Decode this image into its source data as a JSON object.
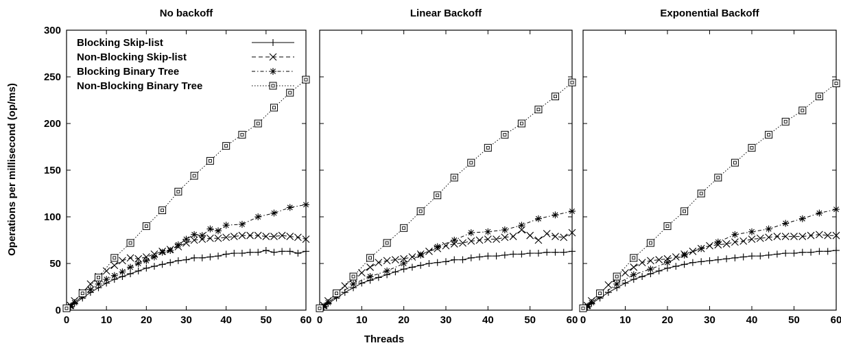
{
  "figure": {
    "ylabel": "Operations per millisecond (op/ms)",
    "xlabel": "Threads"
  },
  "chart_data": [
    {
      "type": "line",
      "title": "No backoff",
      "xlim": [
        0,
        60
      ],
      "ylim": [
        0,
        300
      ],
      "xticks": [
        0,
        10,
        20,
        30,
        40,
        50,
        60
      ],
      "yticks": [
        0,
        50,
        100,
        150,
        200,
        250,
        300
      ],
      "legend": "top-left",
      "series": [
        {
          "name": "Blocking Skip-list",
          "marker": "plus",
          "dash": "solid",
          "x": [
            1,
            2,
            4,
            6,
            8,
            10,
            12,
            14,
            16,
            18,
            20,
            22,
            24,
            26,
            28,
            30,
            32,
            34,
            36,
            38,
            40,
            42,
            44,
            46,
            48,
            50,
            52,
            54,
            56,
            58,
            60
          ],
          "y": [
            3,
            7,
            13,
            19,
            24,
            29,
            33,
            36,
            39,
            42,
            45,
            47,
            49,
            51,
            53,
            54,
            56,
            56,
            57,
            58,
            60,
            61,
            61,
            62,
            62,
            64,
            62,
            63,
            63,
            61,
            63
          ]
        },
        {
          "name": "Non-Blocking Skip-list",
          "marker": "cross",
          "dash": "dashed",
          "x": [
            1,
            2,
            4,
            6,
            8,
            10,
            12,
            14,
            16,
            18,
            20,
            22,
            24,
            26,
            28,
            30,
            32,
            34,
            36,
            38,
            40,
            42,
            44,
            46,
            48,
            50,
            52,
            54,
            56,
            58,
            60
          ],
          "y": [
            5,
            10,
            19,
            28,
            36,
            42,
            48,
            53,
            56,
            55,
            57,
            60,
            63,
            65,
            68,
            72,
            75,
            76,
            77,
            77,
            78,
            79,
            80,
            80,
            80,
            79,
            79,
            80,
            79,
            78,
            76
          ]
        },
        {
          "name": "Blocking Binary Tree",
          "marker": "star",
          "dash": "dashdot",
          "x": [
            1,
            2,
            4,
            6,
            8,
            10,
            12,
            14,
            16,
            18,
            20,
            22,
            24,
            26,
            28,
            30,
            32,
            34,
            36,
            38,
            40,
            44,
            48,
            52,
            56,
            60
          ],
          "y": [
            4,
            8,
            15,
            22,
            28,
            33,
            37,
            41,
            46,
            50,
            53,
            57,
            62,
            64,
            70,
            76,
            81,
            80,
            87,
            85,
            91,
            92,
            100,
            104,
            110,
            113
          ]
        },
        {
          "name": "Non-Blocking Binary Tree",
          "marker": "square",
          "dash": "dotted",
          "x": [
            0,
            4,
            8,
            12,
            16,
            20,
            24,
            28,
            32,
            36,
            40,
            44,
            48,
            52,
            56,
            60
          ],
          "y": [
            2,
            18,
            35,
            56,
            72,
            90,
            107,
            127,
            144,
            160,
            176,
            188,
            200,
            217,
            233,
            247
          ]
        }
      ]
    },
    {
      "type": "line",
      "title": "Linear Backoff",
      "xlim": [
        0,
        60
      ],
      "ylim": [
        0,
        300
      ],
      "xticks": [
        0,
        10,
        20,
        30,
        40,
        50,
        60
      ],
      "yticks": [
        0,
        50,
        100,
        150,
        200,
        250,
        300
      ],
      "series": [
        {
          "name": "Blocking Skip-list",
          "marker": "plus",
          "dash": "solid",
          "x": [
            1,
            2,
            4,
            6,
            8,
            10,
            12,
            14,
            16,
            18,
            20,
            22,
            24,
            26,
            28,
            30,
            32,
            34,
            36,
            38,
            40,
            42,
            44,
            46,
            48,
            50,
            52,
            54,
            56,
            58,
            60
          ],
          "y": [
            3,
            7,
            13,
            19,
            24,
            29,
            32,
            35,
            38,
            41,
            44,
            46,
            48,
            50,
            51,
            52,
            54,
            54,
            56,
            57,
            58,
            58,
            59,
            60,
            60,
            61,
            61,
            62,
            62,
            62,
            63
          ]
        },
        {
          "name": "Non-Blocking Skip-list",
          "marker": "cross",
          "dash": "dashed",
          "x": [
            1,
            2,
            4,
            6,
            8,
            10,
            12,
            14,
            16,
            18,
            20,
            22,
            24,
            26,
            28,
            30,
            32,
            34,
            36,
            38,
            40,
            42,
            44,
            46,
            48,
            50,
            52,
            54,
            56,
            58,
            60
          ],
          "y": [
            5,
            10,
            18,
            26,
            34,
            40,
            46,
            51,
            53,
            54,
            55,
            57,
            60,
            63,
            66,
            69,
            71,
            72,
            74,
            75,
            76,
            76,
            78,
            79,
            86,
            80,
            75,
            82,
            79,
            78,
            83
          ]
        },
        {
          "name": "Blocking Binary Tree",
          "marker": "star",
          "dash": "dashdot",
          "x": [
            1,
            2,
            4,
            8,
            12,
            16,
            20,
            24,
            28,
            32,
            36,
            40,
            44,
            48,
            52,
            56,
            60
          ],
          "y": [
            4,
            8,
            15,
            28,
            36,
            42,
            50,
            59,
            68,
            75,
            83,
            84,
            86,
            91,
            98,
            102,
            106
          ]
        },
        {
          "name": "Non-Blocking Binary Tree",
          "marker": "square",
          "dash": "dotted",
          "x": [
            0,
            4,
            8,
            12,
            16,
            20,
            24,
            28,
            32,
            36,
            40,
            44,
            48,
            52,
            56,
            60
          ],
          "y": [
            2,
            18,
            36,
            56,
            72,
            88,
            106,
            123,
            142,
            158,
            174,
            188,
            200,
            215,
            229,
            244
          ]
        }
      ]
    },
    {
      "type": "line",
      "title": "Exponential Backoff",
      "xlim": [
        0,
        60
      ],
      "ylim": [
        0,
        300
      ],
      "xticks": [
        0,
        10,
        20,
        30,
        40,
        50,
        60
      ],
      "yticks": [
        0,
        50,
        100,
        150,
        200,
        250,
        300
      ],
      "series": [
        {
          "name": "Blocking Skip-list",
          "marker": "plus",
          "dash": "solid",
          "x": [
            1,
            2,
            4,
            6,
            8,
            10,
            12,
            14,
            16,
            18,
            20,
            22,
            24,
            26,
            28,
            30,
            32,
            34,
            36,
            38,
            40,
            42,
            44,
            46,
            48,
            50,
            52,
            54,
            56,
            58,
            60
          ],
          "y": [
            3,
            7,
            13,
            19,
            24,
            29,
            33,
            36,
            39,
            42,
            45,
            47,
            49,
            51,
            52,
            53,
            54,
            55,
            56,
            57,
            58,
            58,
            59,
            60,
            61,
            61,
            62,
            62,
            63,
            63,
            64
          ]
        },
        {
          "name": "Non-Blocking Skip-list",
          "marker": "cross",
          "dash": "dashed",
          "x": [
            1,
            2,
            4,
            6,
            8,
            10,
            12,
            14,
            16,
            18,
            20,
            22,
            24,
            26,
            28,
            30,
            32,
            34,
            36,
            38,
            40,
            42,
            44,
            46,
            48,
            50,
            52,
            54,
            56,
            58,
            60
          ],
          "y": [
            5,
            10,
            18,
            27,
            34,
            40,
            46,
            51,
            53,
            54,
            55,
            57,
            60,
            63,
            66,
            69,
            70,
            71,
            73,
            74,
            76,
            77,
            78,
            79,
            79,
            79,
            79,
            80,
            81,
            80,
            80
          ]
        },
        {
          "name": "Blocking Binary Tree",
          "marker": "star",
          "dash": "dashdot",
          "x": [
            1,
            2,
            4,
            8,
            12,
            16,
            20,
            24,
            28,
            32,
            36,
            40,
            44,
            48,
            52,
            56,
            60
          ],
          "y": [
            4,
            8,
            15,
            28,
            38,
            44,
            51,
            59,
            66,
            73,
            81,
            84,
            87,
            93,
            98,
            104,
            108
          ]
        },
        {
          "name": "Non-Blocking Binary Tree",
          "marker": "square",
          "dash": "dotted",
          "x": [
            0,
            4,
            8,
            12,
            16,
            20,
            24,
            28,
            32,
            36,
            40,
            44,
            48,
            52,
            56,
            60
          ],
          "y": [
            2,
            18,
            36,
            56,
            72,
            90,
            106,
            125,
            142,
            158,
            174,
            188,
            202,
            214,
            229,
            243
          ]
        }
      ]
    }
  ]
}
